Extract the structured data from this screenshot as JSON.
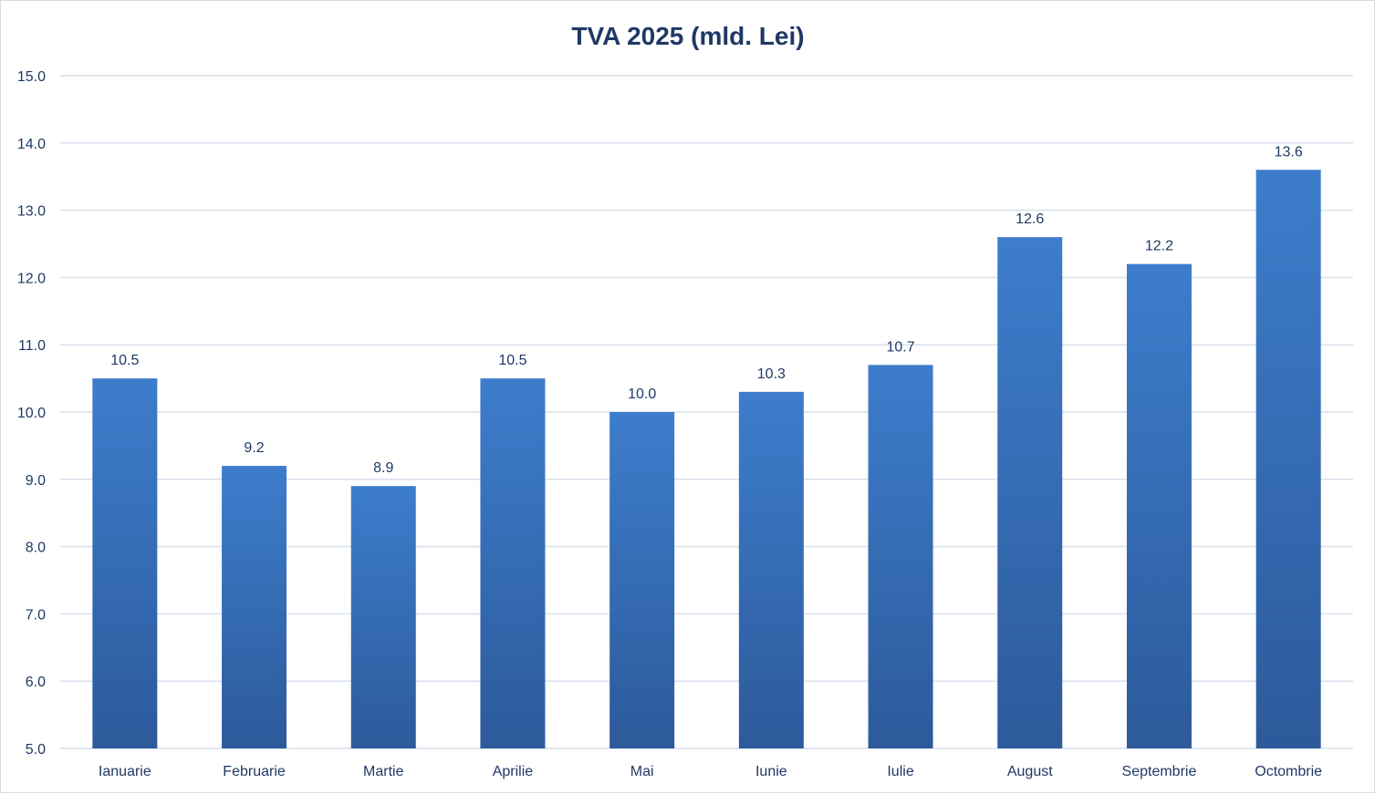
{
  "chart_data": {
    "type": "bar",
    "title": "TVA 2025 (mld. Lei)",
    "xlabel": "",
    "ylabel": "",
    "ylim": [
      5.0,
      15.0
    ],
    "ytick_step": 1.0,
    "grid": true,
    "legend": "none",
    "categories": [
      "Ianuarie",
      "Februarie",
      "Martie",
      "Aprilie",
      "Mai",
      "Iunie",
      "Iulie",
      "August",
      "Septembrie",
      "Octombrie"
    ],
    "values": [
      10.5,
      9.2,
      8.9,
      10.5,
      10.0,
      10.3,
      10.7,
      12.6,
      12.2,
      13.6
    ],
    "ytick_labels": [
      "5.0",
      "6.0",
      "7.0",
      "8.0",
      "9.0",
      "10.0",
      "11.0",
      "12.0",
      "13.0",
      "14.0",
      "15.0"
    ],
    "data_labels": [
      "10.5",
      "9.2",
      "8.9",
      "10.5",
      "10.0",
      "10.3",
      "10.7",
      "12.6",
      "12.2",
      "13.6"
    ]
  },
  "colors": {
    "bar_top": "#3d7dcc",
    "bar_bottom": "#2d5a9b",
    "text": "#1f3864",
    "grid": "#d6e0ec"
  }
}
